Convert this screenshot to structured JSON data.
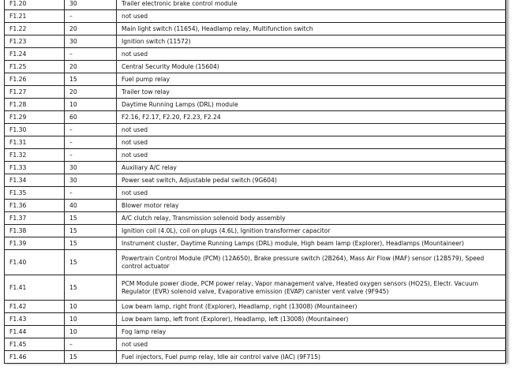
{
  "table": {
    "rows": [
      [
        "F1.20",
        "30",
        "Trailer electronic brake control module"
      ],
      [
        "F1.21",
        "–",
        "not used"
      ],
      [
        "F1.22",
        "20",
        "Main light switch (11654), Headlamp relay, Multifunction switch"
      ],
      [
        "F1.23",
        "30",
        "Ignition switch (11572)"
      ],
      [
        "F1.24",
        "–",
        "not used"
      ],
      [
        "F1.25",
        "20",
        "Central Security Module (15604)"
      ],
      [
        "F1.26",
        "15",
        "Fuel pump relay"
      ],
      [
        "F1.27",
        "20",
        "Trailer tow relay"
      ],
      [
        "F1.28",
        "10",
        "Daytime Running Lamps (DRL) module"
      ],
      [
        "F1.29",
        "60",
        "F2.16, F2.17, F2.20, F2.23, F2.24"
      ],
      [
        "F1.30",
        "–",
        "not used"
      ],
      [
        "F1.31",
        "–",
        "not used"
      ],
      [
        "F1.32",
        "–",
        "not used"
      ],
      [
        "F1.33",
        "30",
        "Auxiliary A/C relay"
      ],
      [
        "F1.34",
        "30",
        "Power seat switch, Adjustable pedal switch (9G604)"
      ],
      [
        "F1.35",
        "–",
        "not used"
      ],
      [
        "F1.36",
        "40",
        "Blower motor relay"
      ],
      [
        "F1.37",
        "15",
        "A/C clutch relay, Transmission solenoid body assembly"
      ],
      [
        "F1.38",
        "15",
        "Ignition coil (4.0L), coil on plugs (4.6L), Ignition transformer capacitor"
      ],
      [
        "F1.39",
        "15",
        "Instrument cluster, Daytime Running Lamps (DRL) module, High beam lamp (Explorer), Headlamps (Mountaineer)"
      ],
      [
        "F1.40",
        "15",
        "Powertrain Control Module (PCM) (12A650), Brake pressure switch (2B264), Mass Air Flow (MAF) sensor (12B579), Speed control actuator"
      ],
      [
        "F1.41",
        "15",
        "PCM Module power diode, PCM power relay, Vapor management valve, Heated oxygen sensors (HO2S), Electr. Vacuum Regulator (EVR) solenoid valve, Evaporative emission (EVAP) canister vent valve (9F945)"
      ],
      [
        "F1.42",
        "10",
        "Low beam lamp, right front (Explorer), Headlamp, right (13008) (Mountaineer)"
      ],
      [
        "F1.43",
        "10",
        "Low beam lamp, left front (Explorer), Headlamp, left (13008) (Mountaineer)"
      ],
      [
        "F1.44",
        "10",
        "Fog lamp relay"
      ],
      [
        "F1.45",
        "–",
        "not used"
      ],
      [
        "F1.46",
        "15",
        "Fuel injectors, Fuel pump relay, Idle air control valve (IAC) (9F715)"
      ]
    ]
  }
}
